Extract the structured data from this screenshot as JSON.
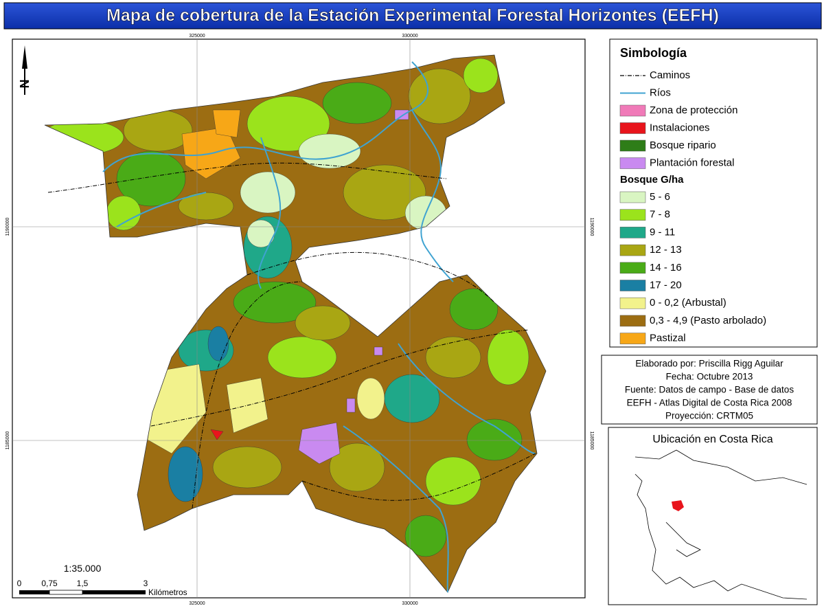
{
  "title": "Mapa de cobertura de la Estación Experimental Forestal Horizontes (EEFH)",
  "map": {
    "grid": {
      "x_labels": [
        "325000",
        "330000"
      ],
      "y_labels": [
        "1190000",
        "1185000"
      ]
    },
    "north": "N",
    "scale": {
      "ratio": "1:35.000",
      "ticks": [
        "0",
        "0,75",
        "1,5",
        "3"
      ],
      "unit": "Kilómetros"
    }
  },
  "legend": {
    "title": "Simbología",
    "symbols": [
      {
        "label": "Caminos",
        "color": "#000000",
        "symbol": "line"
      },
      {
        "label": "Ríos",
        "color": "#3fa3d1",
        "symbol": "line"
      },
      {
        "label": "Zona de protección",
        "color": "#f07ab8"
      },
      {
        "label": "Instalaciones",
        "color": "#e8141c"
      },
      {
        "label": "Bosque ripario",
        "color": "#2e7d18"
      },
      {
        "label": "Plantación forestal",
        "color": "#c98af0"
      }
    ],
    "subtitle": "Bosque G/ha",
    "classes": [
      {
        "label": "5 - 6",
        "color": "#d9f5c2"
      },
      {
        "label": "7 - 8",
        "color": "#9be31c"
      },
      {
        "label": "9 - 11",
        "color": "#1fa889"
      },
      {
        "label": "12 - 13",
        "color": "#a9a613"
      },
      {
        "label": "14 - 16",
        "color": "#4aab17"
      },
      {
        "label": "17 - 20",
        "color": "#1a7fa3"
      },
      {
        "label": "0 - 0,2 (Arbustal)",
        "color": "#f2f28c"
      },
      {
        "label": "0,3 - 4,9 (Pasto arbolado)",
        "color": "#9c6d12"
      },
      {
        "label": "Pastizal",
        "color": "#f7a717"
      }
    ]
  },
  "credits": [
    "Elaborado por: Priscilla Rigg Aguilar",
    "Fecha: Octubre 2013",
    "Fuente: Datos de campo - Base de datos",
    "EEFH - Atlas Digital de Costa Rica 2008",
    "Proyección: CRTM05"
  ],
  "inset": {
    "title": "Ubicación en Costa Rica"
  }
}
